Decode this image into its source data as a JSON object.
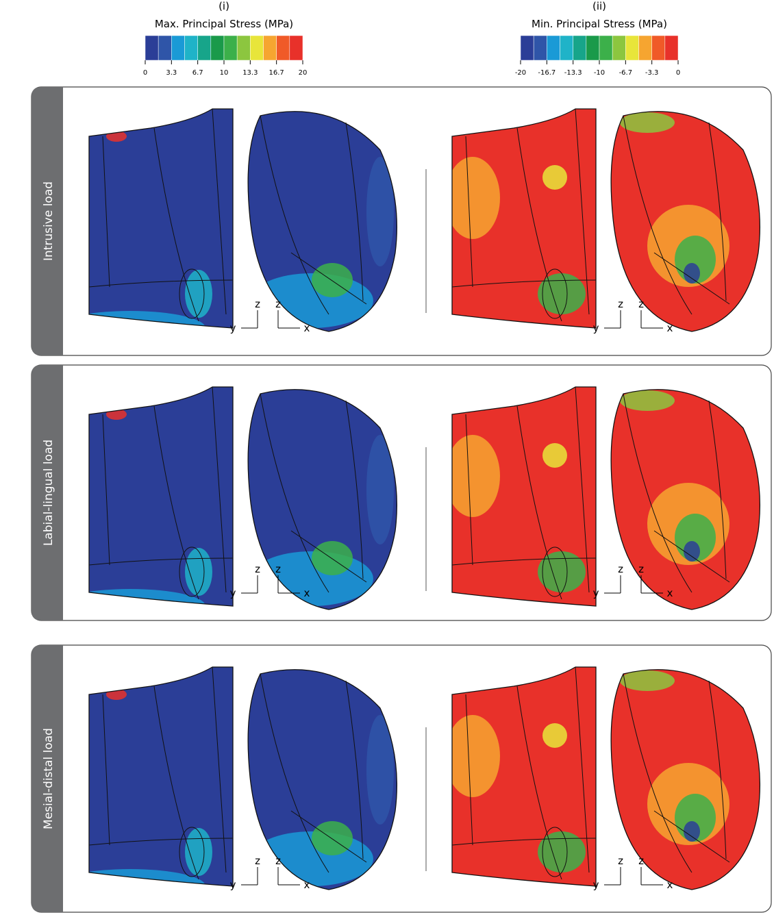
{
  "panels": [
    {
      "label": "(i)",
      "legend": {
        "title": "Max. Principal Stress (MPa)",
        "ticks": [
          "0",
          "3.3",
          "6.7",
          "10",
          "13.3",
          "16.7",
          "20"
        ],
        "colors": [
          "#2b3e97",
          "#2f55a8",
          "#1a9ad6",
          "#1fb3c8",
          "#17a58a",
          "#1a9a4a",
          "#3cb04a",
          "#8cc63f",
          "#e8e53a",
          "#f6a530",
          "#f05a28",
          "#e8312a"
        ]
      }
    },
    {
      "label": "(ii)",
      "legend": {
        "title": "Min. Principal Stress (MPa)",
        "ticks": [
          "-20",
          "-16.7",
          "-13.3",
          "-10",
          "-6.7",
          "-3.3",
          "0"
        ],
        "colors": [
          "#2b3e97",
          "#2f55a8",
          "#1a9ad6",
          "#1fb3c8",
          "#17a58a",
          "#1a9a4a",
          "#3cb04a",
          "#8cc63f",
          "#e8e53a",
          "#f6a530",
          "#f05a28",
          "#e8312a"
        ]
      }
    }
  ],
  "rows": [
    {
      "label": "Intrusive load"
    },
    {
      "label": "Labial-lingual load"
    },
    {
      "label": "Mesial-distal load"
    }
  ],
  "axis_labels": {
    "vertical": "z",
    "left": "y",
    "right": "x"
  }
}
